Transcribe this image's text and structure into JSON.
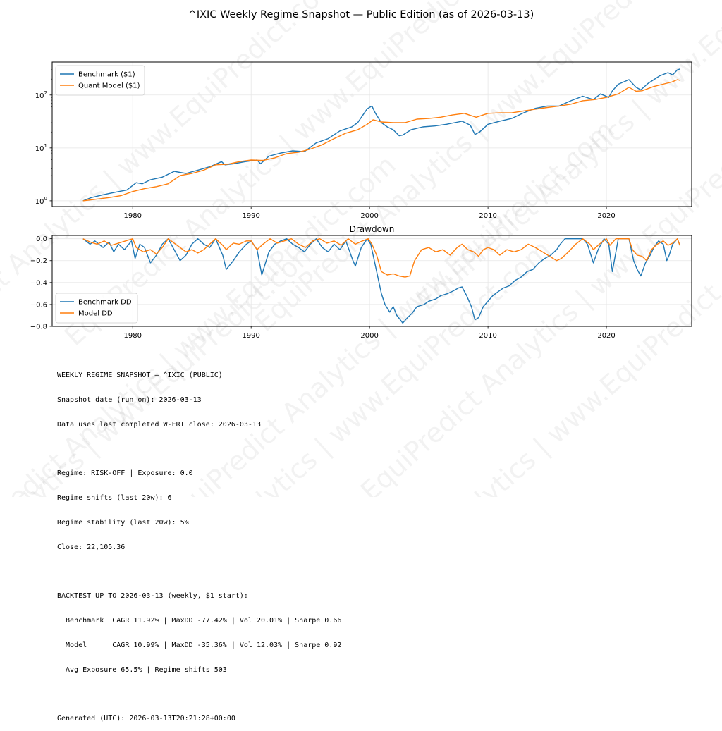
{
  "figure": {
    "title": "^IXIC Weekly Regime Snapshot — Public Edition (as of 2026-03-13)",
    "watermark": "EquiPredict Analytics | www.EquiPredict.com",
    "colors": {
      "benchmark": "#1f77b4",
      "model": "#ff7f0e",
      "grid": "#e6e6e6",
      "axis": "#000000"
    }
  },
  "chart_data": [
    {
      "type": "line",
      "title": "",
      "xlabel": "",
      "ylabel": "",
      "yscale": "log",
      "xlim": [
        1973.2,
        2027.2
      ],
      "ylim": [
        0.78,
        420
      ],
      "x_ticks": [
        1980,
        1990,
        2000,
        2010,
        2020
      ],
      "y_ticks": [
        {
          "value": 1,
          "base": "10",
          "exp": "0"
        },
        {
          "value": 10,
          "base": "10",
          "exp": "1"
        },
        {
          "value": 100,
          "base": "10",
          "exp": "2"
        }
      ],
      "grid": true,
      "legend_position": "top-left",
      "series": [
        {
          "name": "Benchmark ($1)",
          "color": "#1f77b4",
          "x": [
            1975.8,
            1976.5,
            1977.5,
            1978.5,
            1979.5,
            1980.3,
            1980.8,
            1981.5,
            1982.5,
            1983.5,
            1984.5,
            1985.5,
            1986.5,
            1987.5,
            1987.8,
            1988.5,
            1989.5,
            1990.5,
            1990.8,
            1991.5,
            1992.5,
            1993.5,
            1994.5,
            1995.5,
            1996.5,
            1997.5,
            1998.5,
            1999.0,
            1999.8,
            2000.2,
            2000.5,
            2001.0,
            2001.5,
            2002.0,
            2002.5,
            2002.8,
            2003.5,
            2004.5,
            2005.5,
            2006.5,
            2007.5,
            2007.8,
            2008.5,
            2008.9,
            2009.3,
            2010.0,
            2011.0,
            2012.0,
            2013.0,
            2014.0,
            2015.0,
            2016.0,
            2017.0,
            2018.0,
            2018.9,
            2019.5,
            2020.2,
            2020.5,
            2021.0,
            2021.9,
            2022.5,
            2022.9,
            2023.5,
            2024.0,
            2024.5,
            2025.2,
            2025.6,
            2026.0,
            2026.2
          ],
          "values": [
            1.0,
            1.15,
            1.3,
            1.45,
            1.6,
            2.2,
            2.1,
            2.5,
            2.8,
            3.6,
            3.3,
            3.8,
            4.4,
            5.5,
            4.8,
            5.0,
            5.5,
            5.9,
            5.0,
            7.0,
            8.0,
            8.8,
            8.5,
            12.5,
            15.0,
            21.0,
            25.0,
            30.0,
            55.0,
            62.0,
            45.0,
            30.0,
            25.0,
            22.0,
            17.0,
            17.5,
            22.0,
            25.0,
            26.0,
            28.0,
            31.0,
            32.0,
            27.0,
            18.0,
            20.0,
            28.0,
            32.0,
            36.0,
            46.0,
            56.0,
            62.0,
            62.0,
            78.0,
            95.0,
            82.0,
            105.0,
            90.0,
            120.0,
            160.0,
            195.0,
            140.0,
            125.0,
            165.0,
            195.0,
            230.0,
            265.0,
            240.0,
            300.0,
            310.0
          ]
        },
        {
          "name": "Quant Model ($1)",
          "color": "#ff7f0e",
          "x": [
            1975.8,
            1977.0,
            1978.0,
            1979.0,
            1980.0,
            1981.0,
            1982.0,
            1983.0,
            1984.0,
            1985.0,
            1986.0,
            1987.0,
            1988.0,
            1989.0,
            1990.0,
            1991.0,
            1992.0,
            1993.0,
            1994.0,
            1995.0,
            1996.0,
            1997.0,
            1998.0,
            1999.0,
            1999.8,
            2000.3,
            2001.0,
            2002.0,
            2003.0,
            2004.0,
            2005.0,
            2006.0,
            2007.0,
            2008.0,
            2009.0,
            2010.0,
            2011.0,
            2012.0,
            2013.0,
            2014.0,
            2015.0,
            2016.0,
            2017.0,
            2018.0,
            2019.0,
            2020.0,
            2021.0,
            2021.9,
            2022.5,
            2023.0,
            2024.0,
            2025.0,
            2025.5,
            2026.0,
            2026.2
          ],
          "values": [
            1.0,
            1.08,
            1.15,
            1.25,
            1.5,
            1.7,
            1.85,
            2.1,
            3.0,
            3.3,
            3.8,
            4.8,
            4.9,
            5.5,
            5.9,
            5.8,
            6.5,
            7.8,
            8.3,
            9.5,
            11.5,
            15.0,
            19.0,
            22.0,
            28.0,
            34.0,
            31.0,
            30.0,
            30.0,
            35.0,
            36.0,
            38.0,
            42.0,
            45.0,
            38.0,
            45.0,
            46.0,
            46.0,
            50.0,
            54.0,
            58.0,
            62.0,
            67.0,
            78.0,
            82.0,
            90.0,
            105.0,
            140.0,
            118.0,
            120.0,
            145.0,
            165.0,
            175.0,
            195.0,
            190.0
          ]
        }
      ]
    },
    {
      "type": "line",
      "title": "Drawdown",
      "xlabel": "",
      "ylabel": "",
      "xlim": [
        1973.2,
        2027.2
      ],
      "ylim": [
        -0.8,
        0.03
      ],
      "x_ticks": [
        1980,
        1990,
        2000,
        2010,
        2020
      ],
      "y_ticks": [
        0.0,
        -0.2,
        -0.4,
        -0.6,
        -0.8
      ],
      "y_tick_labels": [
        "0.0",
        "−0.2",
        "−0.4",
        "−0.6",
        "−0.8"
      ],
      "grid": true,
      "legend_position": "bottom-left",
      "series": [
        {
          "name": "Benchmark DD",
          "color": "#1f77b4",
          "x": [
            1975.8,
            1976.4,
            1976.8,
            1977.5,
            1978.0,
            1978.4,
            1978.8,
            1979.3,
            1979.9,
            1980.2,
            1980.6,
            1981.0,
            1981.5,
            1982.0,
            1982.5,
            1983.0,
            1983.5,
            1984.0,
            1984.5,
            1985.0,
            1985.5,
            1986.0,
            1986.5,
            1987.0,
            1987.6,
            1987.9,
            1988.5,
            1989.0,
            1989.6,
            1990.0,
            1990.5,
            1990.9,
            1991.5,
            1992.0,
            1992.5,
            1993.0,
            1993.5,
            1994.0,
            1994.5,
            1995.0,
            1995.5,
            1996.0,
            1996.5,
            1997.0,
            1997.5,
            1998.0,
            1998.6,
            1998.8,
            1999.3,
            1999.8,
            2000.1,
            2000.3,
            2000.6,
            2001.0,
            2001.3,
            2001.7,
            2002.0,
            2002.3,
            2002.6,
            2002.8,
            2003.2,
            2003.6,
            2004.0,
            2004.6,
            2005.0,
            2005.6,
            2006.0,
            2006.6,
            2007.0,
            2007.5,
            2007.8,
            2008.2,
            2008.6,
            2008.9,
            2009.2,
            2009.6,
            2010.0,
            2010.4,
            2010.9,
            2011.3,
            2011.8,
            2012.3,
            2012.8,
            2013.3,
            2013.8,
            2014.3,
            2014.8,
            2015.3,
            2015.8,
            2016.1,
            2016.5,
            2017.0,
            2017.5,
            2018.0,
            2018.4,
            2018.9,
            2019.3,
            2019.8,
            2020.2,
            2020.5,
            2021.0,
            2021.5,
            2021.9,
            2022.3,
            2022.6,
            2022.9,
            2023.3,
            2023.7,
            2024.0,
            2024.4,
            2024.8,
            2025.1,
            2025.3,
            2025.6,
            2026.0,
            2026.2
          ],
          "values": [
            0.0,
            -0.05,
            -0.02,
            -0.08,
            -0.03,
            -0.12,
            -0.05,
            -0.1,
            -0.02,
            -0.18,
            -0.05,
            -0.08,
            -0.22,
            -0.15,
            -0.05,
            0.0,
            -0.1,
            -0.2,
            -0.15,
            -0.05,
            0.0,
            -0.05,
            -0.08,
            0.0,
            -0.15,
            -0.28,
            -0.2,
            -0.12,
            -0.05,
            -0.02,
            -0.1,
            -0.33,
            -0.12,
            -0.05,
            -0.02,
            0.0,
            -0.05,
            -0.08,
            -0.12,
            -0.05,
            0.0,
            -0.08,
            -0.12,
            -0.05,
            -0.1,
            -0.02,
            -0.2,
            -0.25,
            -0.08,
            0.0,
            -0.05,
            -0.15,
            -0.3,
            -0.5,
            -0.6,
            -0.67,
            -0.62,
            -0.7,
            -0.74,
            -0.77,
            -0.72,
            -0.68,
            -0.62,
            -0.6,
            -0.57,
            -0.55,
            -0.52,
            -0.5,
            -0.48,
            -0.45,
            -0.44,
            -0.52,
            -0.62,
            -0.74,
            -0.72,
            -0.62,
            -0.57,
            -0.52,
            -0.48,
            -0.45,
            -0.43,
            -0.38,
            -0.35,
            -0.3,
            -0.28,
            -0.22,
            -0.18,
            -0.15,
            -0.1,
            -0.05,
            0.0,
            0.0,
            0.0,
            0.0,
            -0.05,
            -0.22,
            -0.1,
            0.0,
            -0.05,
            -0.3,
            0.0,
            0.0,
            0.0,
            -0.2,
            -0.28,
            -0.34,
            -0.22,
            -0.15,
            -0.08,
            -0.02,
            -0.05,
            -0.2,
            -0.15,
            -0.05,
            0.0,
            -0.06
          ]
        },
        {
          "name": "Model DD",
          "color": "#ff7f0e",
          "x": [
            1975.8,
            1976.4,
            1977.0,
            1977.6,
            1978.2,
            1978.8,
            1979.4,
            1980.0,
            1980.3,
            1980.9,
            1981.5,
            1982.0,
            1982.5,
            1983.0,
            1983.5,
            1984.0,
            1984.5,
            1985.0,
            1985.5,
            1986.0,
            1986.5,
            1987.0,
            1987.6,
            1987.9,
            1988.5,
            1989.0,
            1989.6,
            1990.0,
            1990.5,
            1991.0,
            1991.6,
            1992.2,
            1992.8,
            1993.4,
            1994.0,
            1994.6,
            1995.2,
            1995.8,
            1996.4,
            1997.0,
            1997.6,
            1998.2,
            1998.8,
            1999.4,
            1999.9,
            2000.2,
            2000.6,
            2001.0,
            2001.5,
            2002.0,
            2002.5,
            2003.0,
            2003.4,
            2003.8,
            2004.4,
            2005.0,
            2005.6,
            2006.2,
            2006.8,
            2007.4,
            2007.8,
            2008.3,
            2008.8,
            2009.2,
            2009.6,
            2010.0,
            2010.5,
            2011.0,
            2011.6,
            2012.2,
            2012.8,
            2013.4,
            2014.0,
            2014.6,
            2015.2,
            2015.8,
            2016.2,
            2016.8,
            2017.4,
            2018.0,
            2018.6,
            2018.9,
            2019.4,
            2020.0,
            2020.3,
            2020.8,
            2021.4,
            2021.9,
            2022.2,
            2022.6,
            2023.0,
            2023.4,
            2023.8,
            2024.3,
            2024.8,
            2025.2,
            2025.6,
            2026.0,
            2026.2
          ],
          "values": [
            0.0,
            -0.03,
            -0.05,
            -0.02,
            -0.06,
            -0.04,
            -0.02,
            0.0,
            -0.08,
            -0.12,
            -0.1,
            -0.14,
            -0.08,
            0.0,
            -0.04,
            -0.08,
            -0.12,
            -0.1,
            -0.13,
            -0.1,
            -0.05,
            0.0,
            -0.06,
            -0.1,
            -0.04,
            -0.05,
            -0.02,
            -0.02,
            -0.1,
            -0.05,
            0.0,
            -0.04,
            -0.02,
            0.0,
            -0.05,
            -0.08,
            -0.02,
            0.0,
            -0.04,
            -0.02,
            -0.06,
            0.0,
            -0.05,
            -0.02,
            0.0,
            -0.05,
            -0.15,
            -0.3,
            -0.33,
            -0.32,
            -0.34,
            -0.35,
            -0.34,
            -0.2,
            -0.1,
            -0.08,
            -0.12,
            -0.1,
            -0.15,
            -0.08,
            -0.05,
            -0.1,
            -0.12,
            -0.16,
            -0.1,
            -0.08,
            -0.1,
            -0.15,
            -0.1,
            -0.12,
            -0.1,
            -0.05,
            -0.08,
            -0.12,
            -0.16,
            -0.2,
            -0.18,
            -0.12,
            -0.05,
            0.0,
            -0.05,
            -0.1,
            -0.05,
            0.0,
            -0.06,
            0.0,
            0.0,
            0.0,
            -0.1,
            -0.15,
            -0.16,
            -0.2,
            -0.1,
            -0.05,
            -0.02,
            -0.06,
            -0.04,
            0.0,
            -0.06
          ]
        }
      ]
    }
  ],
  "report": {
    "lines": [
      "WEEKLY REGIME SNAPSHOT — ^IXIC (PUBLIC)",
      "Snapshot date (run on): 2026-03-13",
      "Data uses last completed W-FRI close: 2026-03-13",
      "",
      "Regime: RISK-OFF | Exposure: 0.0",
      "Regime shifts (last 20w): 6",
      "Regime stability (last 20w): 5%",
      "Close: 22,105.36",
      "",
      "BACKTEST UP TO 2026-03-13 (weekly, $1 start):",
      "  Benchmark  CAGR 11.92% | MaxDD -77.42% | Vol 20.01% | Sharpe 0.66",
      "  Model      CAGR 10.99% | MaxDD -35.36% | Vol 12.03% | Sharpe 0.92",
      "  Avg Exposure 65.5% | Regime shifts 503",
      "",
      "Generated (UTC): 2026-03-13T20:21:28+00:00"
    ]
  }
}
